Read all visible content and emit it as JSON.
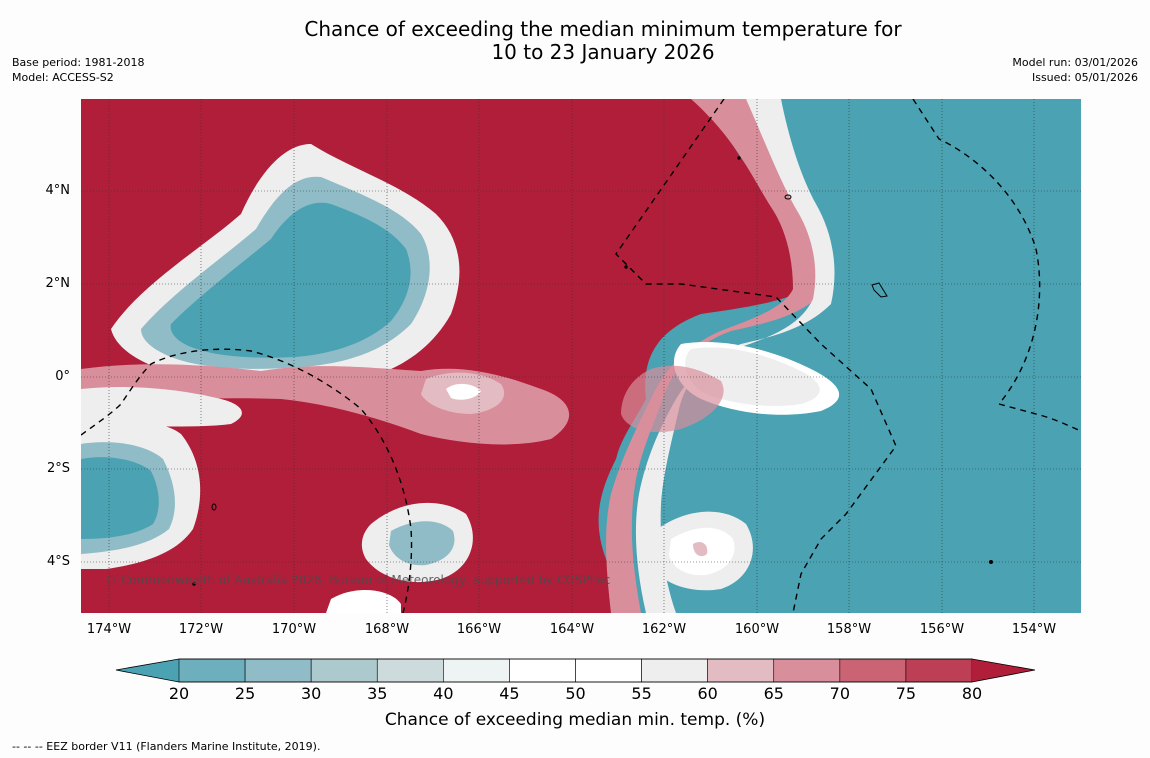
{
  "title": {
    "line1": "Chance of exceeding the median minimum temperature for",
    "line2": "10 to 23 January 2026"
  },
  "meta_left": {
    "base_period": "Base period: 1981-2018",
    "model": "Model: ACCESS-S2"
  },
  "meta_right": {
    "model_run": "Model run: 03/01/2026",
    "issued": "Issued: 05/01/2026"
  },
  "map": {
    "copyright": "© Commonwealth of Australia 2026, Bureau of Meteorology, supported by COSPPac",
    "lat_labels": [
      "4°N",
      "2°N",
      "0°",
      "2°S",
      "4°S"
    ],
    "lon_labels": [
      "174°W",
      "172°W",
      "170°W",
      "168°W",
      "166°W",
      "164°W",
      "162°W",
      "160°W",
      "158°W",
      "156°W",
      "154°W"
    ],
    "colors": {
      "low": "#4aa2b3",
      "mid": "#ffffff",
      "high": "#b01e3a"
    }
  },
  "colorbar": {
    "tick_labels": [
      "20",
      "25",
      "30",
      "35",
      "40",
      "45",
      "50",
      "55",
      "60",
      "65",
      "70",
      "75",
      "80"
    ],
    "colors": [
      "#4aa2b3",
      "#6eafbe",
      "#8fbcc6",
      "#acc9ce",
      "#cddbdc",
      "#eef3f3",
      "#ffffff",
      "#ffffff",
      "#efeeee",
      "#e2bcc2",
      "#d98f9b",
      "#ca6373",
      "#bd3f55",
      "#b01e3a"
    ],
    "label": "Chance of exceeding median min. temp. (%)"
  },
  "legend": {
    "eez": "--  --  -- EEZ border V11 (Flanders Marine Institute, 2019)."
  }
}
